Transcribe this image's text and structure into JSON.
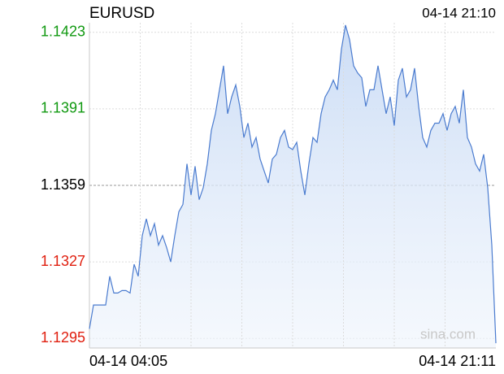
{
  "chart_data": {
    "type": "line",
    "title": "EURUSD",
    "timestamp": "04-14 21:10",
    "watermark": "sina.com",
    "categories": [
      "04-14 04:05",
      null,
      null,
      null,
      null,
      null,
      null,
      null,
      null,
      null,
      null,
      null,
      null,
      null,
      null,
      null,
      null,
      null,
      null,
      null,
      null,
      null,
      null,
      null,
      null,
      null,
      null,
      null,
      null,
      null,
      null,
      null,
      null,
      null,
      null,
      null,
      null,
      null,
      null,
      null,
      null,
      null,
      null,
      null,
      null,
      null,
      null,
      null,
      null,
      null,
      null,
      null,
      null,
      null,
      null,
      null,
      null,
      null,
      null,
      null,
      null,
      null,
      null,
      null,
      null,
      null,
      null,
      null,
      null,
      null,
      null,
      null,
      null,
      null,
      null,
      null,
      null,
      null,
      null,
      null,
      null,
      null,
      null,
      null,
      null,
      null,
      null,
      null,
      null,
      null,
      null,
      null,
      null,
      null,
      null,
      null,
      null,
      null,
      null,
      null,
      "04-14 21:11"
    ],
    "values": [
      1.1299,
      1.1309,
      1.1309,
      1.1309,
      1.1309,
      1.1321,
      1.1314,
      1.1314,
      1.1315,
      1.1315,
      1.1314,
      1.1326,
      1.1321,
      1.1338,
      1.1345,
      1.1338,
      1.1343,
      1.1334,
      1.1338,
      1.1333,
      1.1327,
      1.1338,
      1.1348,
      1.1351,
      1.1368,
      1.1355,
      1.1367,
      1.1353,
      1.1358,
      1.1368,
      1.1382,
      1.1389,
      1.1399,
      1.1409,
      1.1389,
      1.1396,
      1.1401,
      1.1392,
      1.1379,
      1.1385,
      1.1375,
      1.1379,
      1.137,
      1.1365,
      1.136,
      1.137,
      1.1372,
      1.1379,
      1.1382,
      1.1375,
      1.1374,
      1.1377,
      1.1365,
      1.1355,
      1.1368,
      1.1379,
      1.1377,
      1.1389,
      1.1396,
      1.1399,
      1.1403,
      1.1399,
      1.1416,
      1.1426,
      1.142,
      1.1409,
      1.1406,
      1.1404,
      1.1392,
      1.1399,
      1.1399,
      1.1409,
      1.1399,
      1.1389,
      1.1396,
      1.1384,
      1.1403,
      1.1408,
      1.1396,
      1.1399,
      1.1408,
      1.1392,
      1.1379,
      1.1375,
      1.1382,
      1.1385,
      1.1385,
      1.1389,
      1.1382,
      1.1389,
      1.1392,
      1.1385,
      1.1399,
      1.1379,
      1.1375,
      1.1368,
      1.1365,
      1.1372,
      1.1358,
      1.1334,
      1.1293
    ],
    "color": "#4a7bcf",
    "ylim": [
      1.1291,
      1.1427
    ],
    "yticks": [
      1.1295,
      1.1327,
      1.1359,
      1.1391,
      1.1423
    ],
    "baseline": 1.1359,
    "up_color": "#119911",
    "down_color": "#e02010",
    "grid": true
  }
}
